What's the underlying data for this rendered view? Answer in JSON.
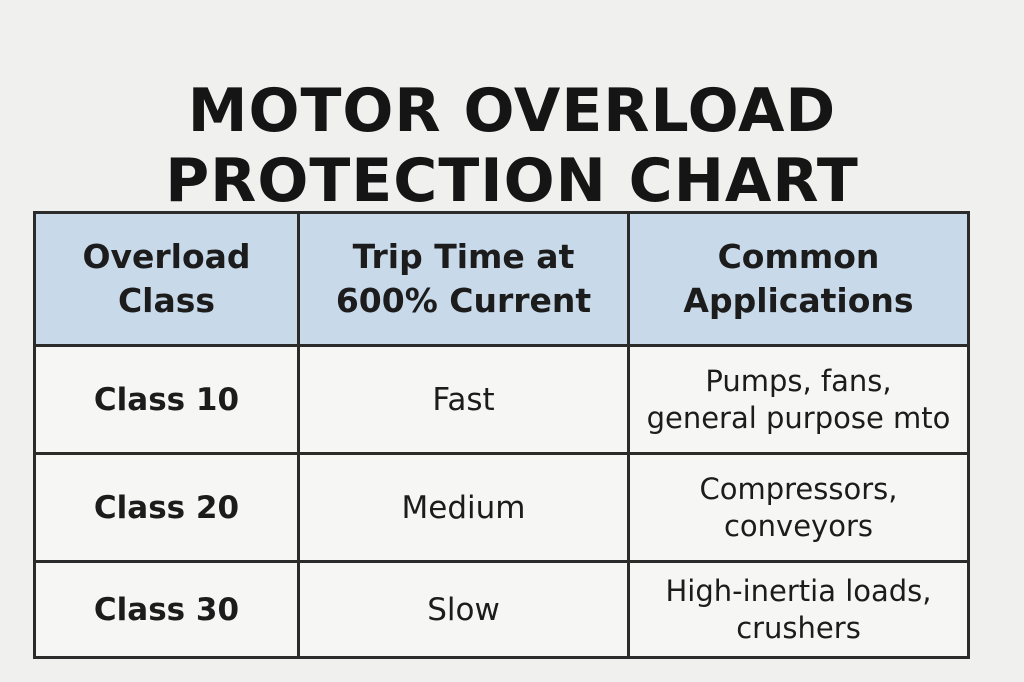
{
  "title": {
    "line1": "MOTOR OVERLOAD",
    "line2": "PROTECTION CHART"
  },
  "table": {
    "headers": [
      {
        "line1": "Overload",
        "line2": "Class"
      },
      {
        "line1": "Trip Time at",
        "line2": "600% Current"
      },
      {
        "line1": "Common",
        "line2": "Applications"
      }
    ],
    "rows": [
      {
        "class": "Class 10",
        "trip_time": "Fast",
        "applications": {
          "line1": "Pumps, fans,",
          "line2": "general purpose mto"
        }
      },
      {
        "class": "Class 20",
        "trip_time": "Medium",
        "applications": {
          "line1": "Compressors,",
          "line2": "conveyors"
        }
      },
      {
        "class": "Class 30",
        "trip_time": "Slow",
        "applications": {
          "line1": "High-inertia loads,",
          "line2": "crushers"
        }
      }
    ]
  },
  "colors": {
    "background": "#f0f0ef",
    "header_fill": "#c8d9e9",
    "border": "#2b2b2b",
    "text": "#1c1c1c"
  }
}
